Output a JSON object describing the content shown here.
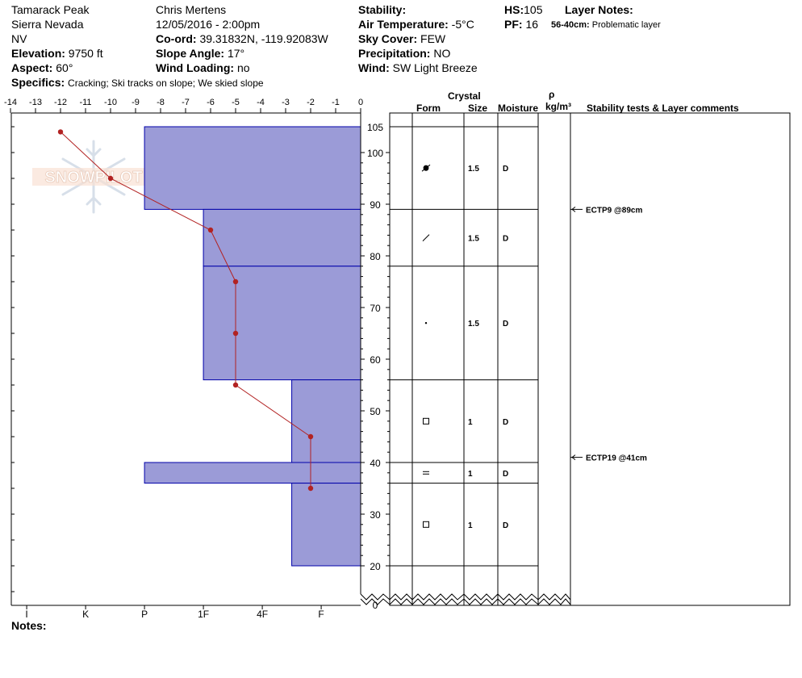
{
  "header": {
    "location": "Tamarack Peak",
    "range": "Sierra Nevada",
    "state": "NV",
    "elevation_label": "Elevation:",
    "elevation": "9750 ft",
    "aspect_label": "Aspect:",
    "aspect": "60°",
    "specifics_label": "Specifics:",
    "specifics": "Cracking; Ski tracks on slope; We skied slope",
    "observer": "Chris Mertens",
    "datetime": "12/05/2016 - 2:00pm",
    "coord_label": "Co-ord:",
    "coord": "39.31832N, -119.92083W",
    "slope_label": "Slope Angle:",
    "slope": "17°",
    "wind_loading_label": "Wind Loading:",
    "wind_loading": "no",
    "stability_label": "Stability:",
    "air_temp_label": "Air Temperature:",
    "air_temp": "-5°C",
    "sky_label": "Sky Cover:",
    "sky": "FEW",
    "precip_label": "Precipitation:",
    "precip": "NO",
    "wind_label": "Wind:",
    "wind": "SW Light Breeze",
    "hs_label": "HS:",
    "hs": "105",
    "pf_label": "PF:",
    "pf": "16",
    "layer_notes_label": "Layer Notes:",
    "layer_note_range": "56-40cm:",
    "layer_note_text": "Problematic layer"
  },
  "columns": {
    "crystal": "Crystal",
    "form": "Form",
    "size": "Size",
    "moisture": "Moisture",
    "rho": "ρ",
    "density_unit": "kg/m³",
    "stability_comments": "Stability tests & Layer comments"
  },
  "footer": {
    "notes_label": "Notes:"
  },
  "watermark": "SNOWPILOT",
  "colors": {
    "hardness_fill": "#9b9bd7",
    "hardness_stroke": "#0000aa",
    "temp": "#b22222"
  },
  "chart_data": {
    "type": "snow-profile",
    "temp_axis": {
      "range": [
        -14,
        0
      ],
      "ticks": [
        "-14",
        "-13",
        "-12",
        "-11",
        "-10",
        "-9",
        "-8",
        "-7",
        "-6",
        "-5",
        "-4",
        "-3",
        "-2",
        "-1",
        "0"
      ]
    },
    "hardness_axis": {
      "labels": [
        "I",
        "K",
        "P",
        "1F",
        "4F",
        "F"
      ],
      "values": [
        6,
        5,
        4,
        3,
        2,
        1
      ]
    },
    "height_axis": {
      "ticks": [
        "105",
        "100",
        "90",
        "80",
        "70",
        "60",
        "50",
        "40",
        "30",
        "20",
        "0"
      ]
    },
    "layers": [
      {
        "top": 105,
        "bottom": 89,
        "hardness": 4,
        "form": "rounding-faceted",
        "size": "1.5",
        "moisture": "D"
      },
      {
        "top": 89,
        "bottom": 78,
        "hardness": 3,
        "form": "decomposing",
        "size": "1.5",
        "moisture": "D"
      },
      {
        "top": 78,
        "bottom": 56,
        "hardness": 3,
        "form": "precip-particle",
        "size": "1.5",
        "moisture": "D"
      },
      {
        "top": 56,
        "bottom": 40,
        "hardness": 1.5,
        "form": "faceted",
        "size": "1",
        "moisture": "D"
      },
      {
        "top": 40,
        "bottom": 36,
        "hardness": 4,
        "form": "surface-hoar",
        "size": "1",
        "moisture": "D"
      },
      {
        "top": 36,
        "bottom": 20,
        "hardness": 1.5,
        "form": "faceted",
        "size": "1",
        "moisture": "D"
      }
    ],
    "temperature_profile": [
      {
        "height": 104,
        "temp": -12
      },
      {
        "height": 95,
        "temp": -10
      },
      {
        "height": 85,
        "temp": -6
      },
      {
        "height": 75,
        "temp": -5
      },
      {
        "height": 65,
        "temp": -5
      },
      {
        "height": 55,
        "temp": -5
      },
      {
        "height": 45,
        "temp": -2
      },
      {
        "height": 35,
        "temp": -2
      }
    ],
    "stability_tests": [
      {
        "height": 89,
        "label": "ECTP9 @89cm"
      },
      {
        "height": 41,
        "label": "ECTP19 @41cm"
      }
    ]
  }
}
